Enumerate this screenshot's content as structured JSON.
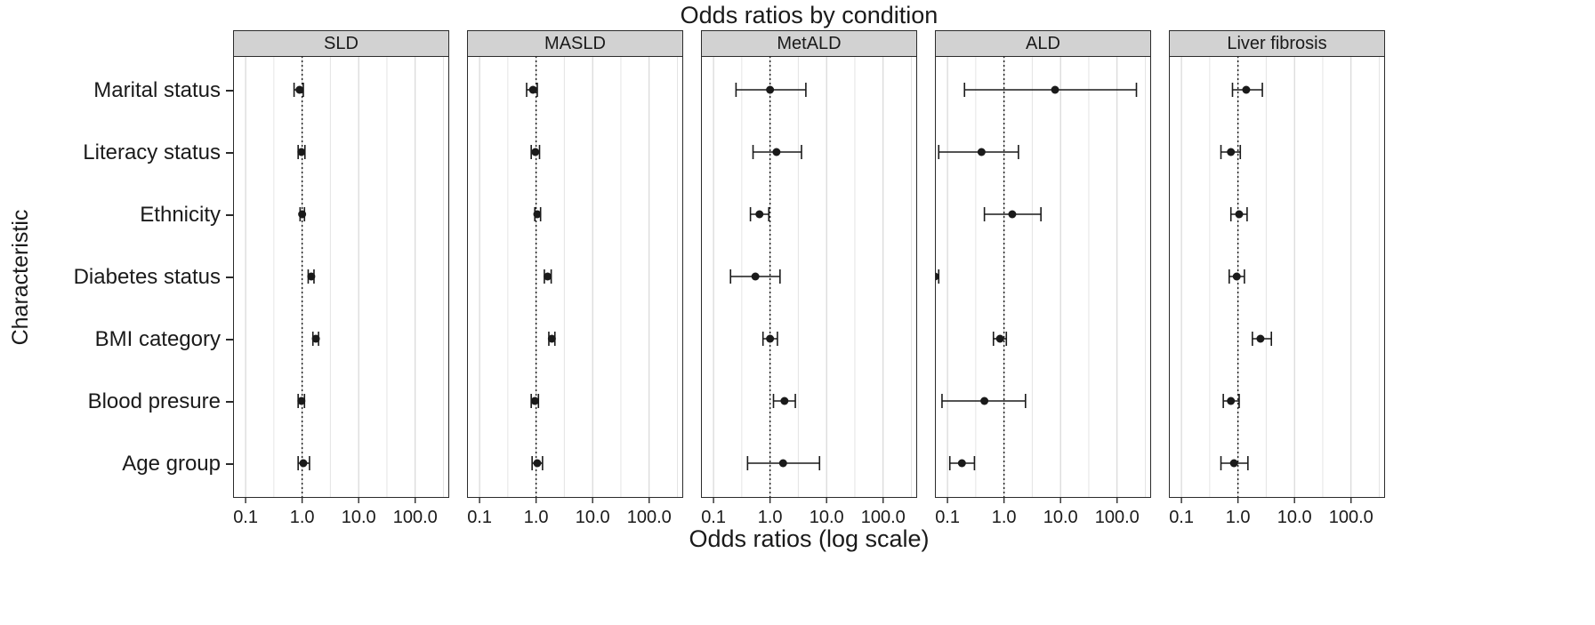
{
  "chart_data": {
    "type": "scatter",
    "subtype": "forest-plot",
    "title": "Odds ratios by condition",
    "xlabel": "Odds ratios (log scale)",
    "ylabel": "Characteristic",
    "x_scale": "log",
    "x_domain": [
      0.06,
      400
    ],
    "x_ticks": [
      0.1,
      1.0,
      10.0,
      100.0
    ],
    "x_tick_labels": [
      "0.1",
      "1.0",
      "10.0",
      "100.0"
    ],
    "x_minor_gridlines": [
      0.316,
      3.16,
      31.6,
      316
    ],
    "reference_line": 1.0,
    "grid": "on",
    "point_color": "#1a1a1a",
    "strip_color": "#d2d2d2",
    "categories": [
      "Marital status",
      "Literacy status",
      "Ethnicity",
      "Diabetes status",
      "BMI category",
      "Blood presure",
      "Age group"
    ],
    "panels": [
      {
        "label": "SLD",
        "points": [
          {
            "or": 0.9,
            "lo": 0.72,
            "hi": 1.05
          },
          {
            "or": 0.97,
            "lo": 0.85,
            "hi": 1.12
          },
          {
            "or": 1.0,
            "lo": 0.92,
            "hi": 1.1
          },
          {
            "or": 1.45,
            "lo": 1.28,
            "hi": 1.62
          },
          {
            "or": 1.75,
            "lo": 1.55,
            "hi": 1.95
          },
          {
            "or": 0.97,
            "lo": 0.85,
            "hi": 1.1
          },
          {
            "or": 1.05,
            "lo": 0.85,
            "hi": 1.35
          }
        ]
      },
      {
        "label": "MASLD",
        "points": [
          {
            "or": 0.88,
            "lo": 0.68,
            "hi": 1.05
          },
          {
            "or": 0.97,
            "lo": 0.82,
            "hi": 1.15
          },
          {
            "or": 1.05,
            "lo": 0.95,
            "hi": 1.2
          },
          {
            "or": 1.6,
            "lo": 1.4,
            "hi": 1.85
          },
          {
            "or": 1.9,
            "lo": 1.68,
            "hi": 2.15
          },
          {
            "or": 0.95,
            "lo": 0.82,
            "hi": 1.1
          },
          {
            "or": 1.05,
            "lo": 0.85,
            "hi": 1.3
          }
        ]
      },
      {
        "label": "MetALD",
        "points": [
          {
            "or": 1.0,
            "lo": 0.25,
            "hi": 4.3
          },
          {
            "or": 1.3,
            "lo": 0.5,
            "hi": 3.6
          },
          {
            "or": 0.65,
            "lo": 0.45,
            "hi": 0.95
          },
          {
            "or": 0.55,
            "lo": 0.2,
            "hi": 1.5
          },
          {
            "or": 1.0,
            "lo": 0.75,
            "hi": 1.35
          },
          {
            "or": 1.8,
            "lo": 1.15,
            "hi": 2.8
          },
          {
            "or": 1.7,
            "lo": 0.4,
            "hi": 7.5
          }
        ]
      },
      {
        "label": "ALD",
        "points": [
          {
            "or": 8.0,
            "lo": 0.2,
            "hi": 220.0
          },
          {
            "or": 0.4,
            "lo": 0.07,
            "hi": 1.8
          },
          {
            "or": 1.4,
            "lo": 0.45,
            "hi": 4.5
          },
          {
            "or": 0.05,
            "lo": 0.04,
            "hi": 0.07
          },
          {
            "or": 0.85,
            "lo": 0.65,
            "hi": 1.1
          },
          {
            "or": 0.45,
            "lo": 0.08,
            "hi": 2.4
          },
          {
            "or": 0.18,
            "lo": 0.11,
            "hi": 0.3
          }
        ]
      },
      {
        "label": "Liver fibrosis",
        "points": [
          {
            "or": 1.4,
            "lo": 0.8,
            "hi": 2.7
          },
          {
            "or": 0.75,
            "lo": 0.5,
            "hi": 1.1
          },
          {
            "or": 1.05,
            "lo": 0.75,
            "hi": 1.45
          },
          {
            "or": 0.95,
            "lo": 0.7,
            "hi": 1.3
          },
          {
            "or": 2.5,
            "lo": 1.8,
            "hi": 3.9
          },
          {
            "or": 0.75,
            "lo": 0.55,
            "hi": 1.05
          },
          {
            "or": 0.85,
            "lo": 0.5,
            "hi": 1.5
          }
        ]
      }
    ]
  }
}
